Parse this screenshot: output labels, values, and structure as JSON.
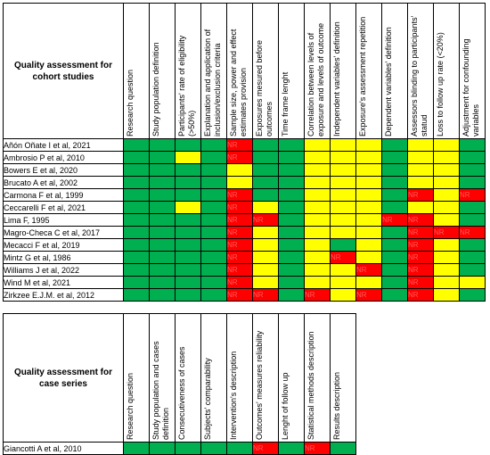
{
  "cohort": {
    "title": "Quality assessment for cohort studies",
    "columns": [
      "Research question",
      "Study population definition",
      "Participants' rate of eligibility (>50%)",
      "Explanation and application of inclusion/exclusion criteria",
      "Sample size, power and effect estimates provision",
      "Exposures mesured before outcomes",
      "Time frame lenght",
      "Correlation between levels of exposure and levels of outcome",
      "Independent variables' definition",
      "Exposure's assessment repetition",
      "Dependent variables' definition",
      "Assessors blinding to participants' statud",
      "Loss to follow up rate (<20%)",
      "Adjustment for confounding variables"
    ],
    "rows": [
      {
        "study": "Añón Oñate I et al, 2021",
        "ratings": [
          "g",
          "g",
          "g",
          "g",
          "r",
          "g",
          "g",
          "y",
          "y",
          "y",
          "g",
          "y",
          "y",
          "g"
        ],
        "labels": [
          "",
          "",
          "",
          "",
          "NR",
          "",
          "",
          "",
          "",
          "",
          "",
          "",
          "",
          ""
        ]
      },
      {
        "study": "Ambrosio P et al, 2010",
        "ratings": [
          "g",
          "g",
          "y",
          "g",
          "r",
          "g",
          "g",
          "y",
          "y",
          "y",
          "g",
          "y",
          "y",
          "g"
        ],
        "labels": [
          "",
          "",
          "",
          "",
          "NR",
          "",
          "",
          "",
          "",
          "",
          "",
          "",
          "",
          ""
        ]
      },
      {
        "study": "Bowers E et al, 2020",
        "ratings": [
          "g",
          "g",
          "g",
          "g",
          "y",
          "g",
          "g",
          "y",
          "y",
          "y",
          "g",
          "y",
          "y",
          "g"
        ],
        "labels": [
          "",
          "",
          "",
          "",
          "",
          "",
          "",
          "",
          "",
          "",
          "",
          "",
          "",
          ""
        ]
      },
      {
        "study": "Brucato A et al, 2002",
        "ratings": [
          "g",
          "g",
          "g",
          "g",
          "y",
          "g",
          "g",
          "y",
          "y",
          "y",
          "g",
          "y",
          "y",
          "g"
        ],
        "labels": [
          "",
          "",
          "",
          "",
          "",
          "",
          "",
          "",
          "",
          "",
          "",
          "",
          "",
          ""
        ]
      },
      {
        "study": "Carmona F et al, 1999",
        "ratings": [
          "g",
          "g",
          "g",
          "g",
          "r",
          "g",
          "g",
          "y",
          "y",
          "y",
          "g",
          "r",
          "y",
          "r"
        ],
        "labels": [
          "",
          "",
          "",
          "",
          "NR",
          "",
          "",
          "",
          "",
          "",
          "",
          "NR",
          "",
          "NR"
        ]
      },
      {
        "study": "Ceccarelli F et al, 2021",
        "ratings": [
          "g",
          "g",
          "y",
          "g",
          "r",
          "y",
          "g",
          "y",
          "y",
          "y",
          "g",
          "y",
          "y",
          "g"
        ],
        "labels": [
          "",
          "",
          "",
          "",
          "NR",
          "",
          "",
          "",
          "",
          "",
          "",
          "",
          "",
          ""
        ]
      },
      {
        "study": "Lima F, 1995",
        "ratings": [
          "g",
          "g",
          "g",
          "g",
          "r",
          "r",
          "g",
          "y",
          "y",
          "y",
          "r",
          "r",
          "y",
          "g"
        ],
        "labels": [
          "",
          "",
          "",
          "",
          "NR",
          "NR",
          "",
          "",
          "",
          "",
          "NR",
          "NR",
          "",
          ""
        ]
      },
      {
        "study": "Magro-Checa C et al, 2017",
        "ratings": [
          "g",
          "g",
          "g",
          "g",
          "r",
          "y",
          "g",
          "y",
          "y",
          "y",
          "g",
          "r",
          "r",
          "r"
        ],
        "labels": [
          "",
          "",
          "",
          "",
          "NR",
          "",
          "",
          "",
          "",
          "",
          "",
          "NR",
          "NR",
          "NR"
        ]
      },
      {
        "study": "Mecacci F et al, 2019",
        "ratings": [
          "g",
          "g",
          "g",
          "g",
          "r",
          "y",
          "g",
          "y",
          "g",
          "y",
          "g",
          "r",
          "y",
          "g"
        ],
        "labels": [
          "",
          "",
          "",
          "",
          "NR",
          "",
          "",
          "",
          "",
          "",
          "",
          "NR",
          "",
          ""
        ]
      },
      {
        "study": "Mintz G et al, 1986",
        "ratings": [
          "g",
          "g",
          "g",
          "g",
          "r",
          "y",
          "g",
          "y",
          "r",
          "y",
          "g",
          "r",
          "y",
          "g"
        ],
        "labels": [
          "",
          "",
          "",
          "",
          "NR",
          "",
          "",
          "",
          "NR",
          "",
          "",
          "NR",
          "",
          ""
        ]
      },
      {
        "study": "Williams J et al, 2022",
        "ratings": [
          "g",
          "g",
          "g",
          "g",
          "r",
          "y",
          "g",
          "y",
          "y",
          "r",
          "g",
          "r",
          "y",
          "g"
        ],
        "labels": [
          "",
          "",
          "",
          "",
          "NR",
          "",
          "",
          "",
          "",
          "NR",
          "",
          "NR",
          "",
          ""
        ]
      },
      {
        "study": "Wind M et al, 2021",
        "ratings": [
          "g",
          "g",
          "g",
          "g",
          "r",
          "y",
          "g",
          "y",
          "y",
          "y",
          "g",
          "r",
          "y",
          "y"
        ],
        "labels": [
          "",
          "",
          "",
          "",
          "NR",
          "",
          "",
          "",
          "",
          "",
          "",
          "NR",
          "",
          ""
        ]
      },
      {
        "study": "Zirkzee E.J.M. et al, 2012",
        "ratings": [
          "g",
          "g",
          "g",
          "g",
          "r",
          "r",
          "g",
          "r",
          "y",
          "r",
          "g",
          "r",
          "y",
          "g"
        ],
        "labels": [
          "",
          "",
          "",
          "",
          "NR",
          "NR",
          "",
          "NR",
          "",
          "NR",
          "",
          "NR",
          "",
          ""
        ]
      }
    ]
  },
  "case_series": {
    "title": "Quality assessment for case series",
    "columns": [
      "Research question",
      "Study population and cases definition",
      "Consecutiveness of cases",
      "Subjects' comparability",
      "Intervention's description",
      "Outcomes' measures reliability",
      "Lenght of follow up",
      "Statistical methods description",
      "Results description"
    ],
    "rows": [
      {
        "study": "Giancotti A et al, 2010",
        "ratings": [
          "g",
          "g",
          "g",
          "g",
          "g",
          "r",
          "g",
          "r",
          "g"
        ],
        "labels": [
          "",
          "",
          "",
          "",
          "",
          "NR",
          "",
          "NR",
          ""
        ]
      }
    ]
  }
}
